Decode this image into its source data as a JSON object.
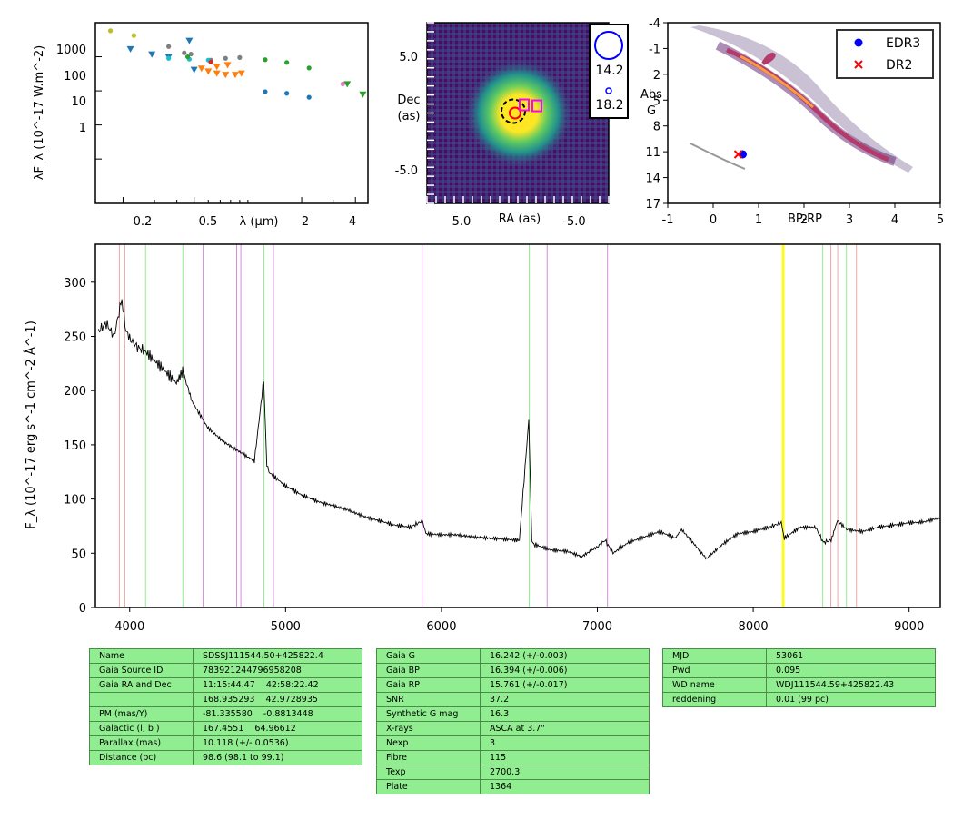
{
  "colors": {
    "ref_red": "#f4a7a7",
    "ref_green": "#90ee90",
    "ref_violet": "#d58bdc",
    "highlight": "#ffff00",
    "table_bg": "#90ee90"
  },
  "sed": {
    "ylabel": "λF_λ (10^-17 W.m^-2)",
    "xlabel": "λ (μm)",
    "xticks": [
      "0.2",
      "0.5",
      "2",
      "4"
    ],
    "yticks": [
      "1000",
      "100",
      "10",
      "1"
    ]
  },
  "image": {
    "xlabel": "RA (as)",
    "ylabel": "Dec (as)",
    "xticks": [
      "5.0",
      "-5.0"
    ],
    "yticks": [
      "5.0",
      "-5.0"
    ],
    "legend": [
      "14.2",
      "18.2"
    ]
  },
  "hr": {
    "xlabel": "BP-RP",
    "ylabel": "Abs G",
    "xticks": [
      "-1",
      "0",
      "1",
      "2",
      "3",
      "4",
      "5"
    ],
    "yticks": [
      "-4",
      "-1",
      "2",
      "5",
      "8",
      "11",
      "14",
      "17"
    ],
    "legend": [
      "EDR3",
      "DR2"
    ]
  },
  "spectrum": {
    "ylabel": "F_λ (10^-17 erg s^-1 cm^-2 Å^-1)",
    "xticks": [
      "4000",
      "5000",
      "6000",
      "7000",
      "8000",
      "9000"
    ],
    "yticks": [
      "0",
      "50",
      "100",
      "150",
      "200",
      "250",
      "300"
    ]
  },
  "chart_data": [
    {
      "type": "scatter",
      "xscale": "log",
      "yscale": "log",
      "xlim": [
        0.14,
        4.7
      ],
      "ylim": [
        0.05,
        10000
      ],
      "series": [
        {
          "marker": "dot",
          "color": "#bcbd22",
          "points": [
            [
              0.17,
              5800
            ],
            [
              0.23,
              4200
            ]
          ]
        },
        {
          "marker": "tri",
          "color": "#1f77b4",
          "points": [
            [
              0.22,
              1700
            ],
            [
              0.29,
              1200
            ],
            [
              0.36,
              1000
            ],
            [
              0.47,
              3000
            ],
            [
              0.5,
              420
            ]
          ]
        },
        {
          "marker": "dot",
          "color": "#7f7f7f",
          "points": [
            [
              0.36,
              2000
            ],
            [
              0.44,
              1300
            ],
            [
              0.48,
              1200
            ],
            [
              0.62,
              800
            ],
            [
              0.75,
              900
            ],
            [
              0.9,
              950
            ]
          ]
        },
        {
          "marker": "dot",
          "color": "#17becf",
          "points": [
            [
              0.36,
              900
            ],
            [
              0.47,
              850
            ],
            [
              0.6,
              800
            ]
          ]
        },
        {
          "marker": "dot",
          "color": "#2ca02c",
          "points": [
            [
              0.46,
              1000
            ],
            [
              1.25,
              820
            ],
            [
              1.65,
              680
            ],
            [
              2.2,
              470
            ]
          ]
        },
        {
          "marker": "tri",
          "color": "#ff7f0e",
          "points": [
            [
              0.55,
              460
            ],
            [
              0.6,
              380
            ],
            [
              0.67,
              330
            ],
            [
              0.75,
              300
            ],
            [
              0.85,
              300
            ],
            [
              0.92,
              330
            ],
            [
              0.67,
              520
            ],
            [
              0.77,
              580
            ]
          ]
        },
        {
          "marker": "dot",
          "color": "#d62728",
          "points": [
            [
              0.62,
              700
            ]
          ]
        },
        {
          "marker": "dot",
          "color": "#1f77b4",
          "points": [
            [
              1.25,
              95
            ],
            [
              1.65,
              85
            ],
            [
              2.2,
              65
            ]
          ]
        },
        {
          "marker": "dot",
          "color": "#e377c2",
          "points": [
            [
              3.4,
              160
            ]
          ]
        },
        {
          "marker": "tri",
          "color": "#2ca02c",
          "points": [
            [
              3.6,
              160
            ],
            [
              4.4,
              80
            ]
          ]
        }
      ]
    },
    {
      "type": "heatmap",
      "xlim": [
        10,
        -10
      ],
      "ylim": [
        -10,
        10
      ],
      "source_center": [
        0,
        0
      ],
      "marks": [
        {
          "kind": "dashed-circle",
          "color": "#000000",
          "x": 0.5,
          "y": 0.2
        },
        {
          "kind": "circle",
          "color": "#ff0000",
          "x": 0.3,
          "y": 0.0
        },
        {
          "kind": "square",
          "color": "#ff00ff",
          "x": -0.7,
          "y": 0.9
        },
        {
          "kind": "square",
          "color": "#ff00ff",
          "x": -2.1,
          "y": 0.8
        }
      ],
      "legend": [
        {
          "label": "14.2",
          "color": "#0000ff"
        },
        {
          "label": "18.2",
          "color": "#0000ff"
        }
      ]
    },
    {
      "type": "scatter",
      "xlim": [
        -1,
        5
      ],
      "ylim": [
        17,
        -4
      ],
      "series": [
        {
          "name": "EDR3",
          "marker": "dot",
          "color": "#0000ff",
          "points": [
            [
              0.65,
              11.3
            ]
          ]
        },
        {
          "name": "DR2",
          "marker": "x",
          "color": "#ff0000",
          "points": [
            [
              0.55,
              11.3
            ]
          ]
        }
      ],
      "background": "density"
    },
    {
      "type": "line",
      "xlim": [
        3780,
        9200
      ],
      "ylim": [
        0,
        335
      ],
      "series": [
        {
          "color": "#000000",
          "points": [
            [
              3800,
              255
            ],
            [
              3850,
              262
            ],
            [
              3900,
              250
            ],
            [
              3950,
              285
            ],
            [
              3970,
              258
            ],
            [
              4000,
              248
            ],
            [
              4050,
              240
            ],
            [
              4100,
              236
            ],
            [
              4200,
              222
            ],
            [
              4300,
              207
            ],
            [
              4340,
              218
            ],
            [
              4400,
              190
            ],
            [
              4500,
              166
            ],
            [
              4600,
              153
            ],
            [
              4700,
              144
            ],
            [
              4800,
              135
            ],
            [
              4860,
              210
            ],
            [
              4880,
              130
            ],
            [
              4900,
              124
            ],
            [
              5000,
              112
            ],
            [
              5100,
              104
            ],
            [
              5200,
              98
            ],
            [
              5300,
              94
            ],
            [
              5400,
              90
            ],
            [
              5500,
              84
            ],
            [
              5600,
              80
            ],
            [
              5700,
              76
            ],
            [
              5800,
              74
            ],
            [
              5880,
              80
            ],
            [
              5900,
              68
            ],
            [
              6000,
              67
            ],
            [
              6100,
              67
            ],
            [
              6200,
              65
            ],
            [
              6300,
              64
            ],
            [
              6400,
              63
            ],
            [
              6500,
              62
            ],
            [
              6560,
              173
            ],
            [
              6580,
              60
            ],
            [
              6600,
              58
            ],
            [
              6700,
              53
            ],
            [
              6800,
              52
            ],
            [
              6900,
              47
            ],
            [
              7000,
              56
            ],
            [
              7050,
              62
            ],
            [
              7100,
              50
            ],
            [
              7200,
              60
            ],
            [
              7300,
              65
            ],
            [
              7400,
              70
            ],
            [
              7500,
              64
            ],
            [
              7540,
              72
            ],
            [
              7600,
              62
            ],
            [
              7700,
              45
            ],
            [
              7800,
              58
            ],
            [
              7900,
              68
            ],
            [
              8000,
              70
            ],
            [
              8100,
              74
            ],
            [
              8180,
              78
            ],
            [
              8200,
              64
            ],
            [
              8300,
              74
            ],
            [
              8400,
              74
            ],
            [
              8450,
              60
            ],
            [
              8500,
              62
            ],
            [
              8540,
              80
            ],
            [
              8600,
              72
            ],
            [
              8700,
              70
            ],
            [
              8800,
              74
            ],
            [
              8900,
              76
            ],
            [
              9000,
              78
            ],
            [
              9100,
              79
            ],
            [
              9200,
              83
            ]
          ]
        }
      ],
      "ref_lines": [
        {
          "x": 3934,
          "color": "red"
        },
        {
          "x": 3969,
          "color": "red"
        },
        {
          "x": 8498,
          "color": "red"
        },
        {
          "x": 8542,
          "color": "red"
        },
        {
          "x": 8662,
          "color": "red"
        },
        {
          "x": 4102,
          "color": "green"
        },
        {
          "x": 4341,
          "color": "green"
        },
        {
          "x": 4861,
          "color": "green"
        },
        {
          "x": 6563,
          "color": "green"
        },
        {
          "x": 8446,
          "color": "green"
        },
        {
          "x": 8598,
          "color": "green"
        },
        {
          "x": 4471,
          "color": "violet"
        },
        {
          "x": 4686,
          "color": "violet"
        },
        {
          "x": 4713,
          "color": "violet"
        },
        {
          "x": 4922,
          "color": "violet"
        },
        {
          "x": 5876,
          "color": "violet"
        },
        {
          "x": 6678,
          "color": "violet"
        },
        {
          "x": 7065,
          "color": "violet"
        }
      ],
      "highlight": [
        8185,
        8200
      ]
    },
    {
      "type": "table",
      "tables": [
        [
          [
            "Name",
            "SDSSJ111544.50+425822.4"
          ],
          [
            "Gaia Source ID",
            "783921244796958208"
          ],
          [
            "Gaia RA and Dec",
            "11:15:44.47    42:58:22.42"
          ],
          [
            "",
            "168.935293    42.9728935"
          ],
          [
            "PM (mas/Y)",
            "-81.335580    -0.8813448"
          ],
          [
            "Galactic (l, b )",
            "167.4551    64.96612"
          ],
          [
            "Parallax (mas)",
            "10.118 (+/- 0.0536)"
          ],
          [
            "Distance (pc)",
            "98.6 (98.1 to 99.1)"
          ]
        ],
        [
          [
            "Gaia G",
            "16.242 (+/-0.003)"
          ],
          [
            "Gaia BP",
            "16.394 (+/-0.006)"
          ],
          [
            "Gaia RP",
            "15.761 (+/-0.017)"
          ],
          [
            "SNR",
            "37.2"
          ],
          [
            "Synthetic G mag",
            "16.3"
          ],
          [
            "X-rays",
            "ASCA at 3.7\""
          ],
          [
            "Nexp",
            "3"
          ],
          [
            "Fibre",
            "115"
          ],
          [
            "Texp",
            "2700.3"
          ],
          [
            "Plate",
            "1364"
          ]
        ],
        [
          [
            "MJD",
            "53061"
          ],
          [
            "Pwd",
            "0.095"
          ],
          [
            "WD name",
            "WDJ111544.59+425822.43"
          ],
          [
            "reddening",
            "0.01 (99 pc)"
          ]
        ]
      ]
    }
  ]
}
